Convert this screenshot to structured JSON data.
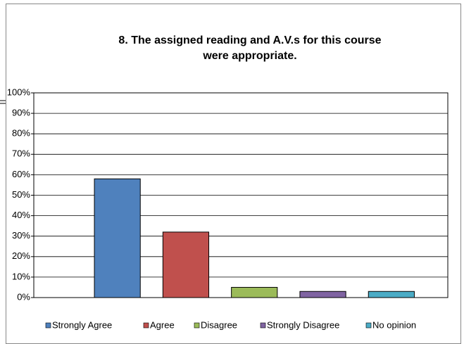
{
  "chart_data": {
    "type": "bar",
    "title": [
      "8. The assigned reading and A.V.s for this course",
      "were appropriate."
    ],
    "categories": [
      "Strongly Agree",
      "Agree",
      "Disagree",
      "Strongly Disagree",
      "No opinion"
    ],
    "values": [
      58,
      32,
      5,
      3,
      3
    ],
    "colors": [
      "#4f81bd",
      "#c0504d",
      "#9bbb59",
      "#8064a2",
      "#4bacc6"
    ],
    "ylim": [
      0,
      100
    ],
    "yticks": [
      {
        "value": 0,
        "label": "0%"
      },
      {
        "value": 10,
        "label": "10%"
      },
      {
        "value": 20,
        "label": "20%"
      },
      {
        "value": 30,
        "label": "30%"
      },
      {
        "value": 40,
        "label": "40%"
      },
      {
        "value": 50,
        "label": "50%"
      },
      {
        "value": 60,
        "label": "60%"
      },
      {
        "value": 70,
        "label": "70%"
      },
      {
        "value": 80,
        "label": "80%"
      },
      {
        "value": 90,
        "label": "90%"
      },
      {
        "value": 100,
        "label": "100%"
      }
    ],
    "grid": true,
    "legend": "bottom"
  }
}
